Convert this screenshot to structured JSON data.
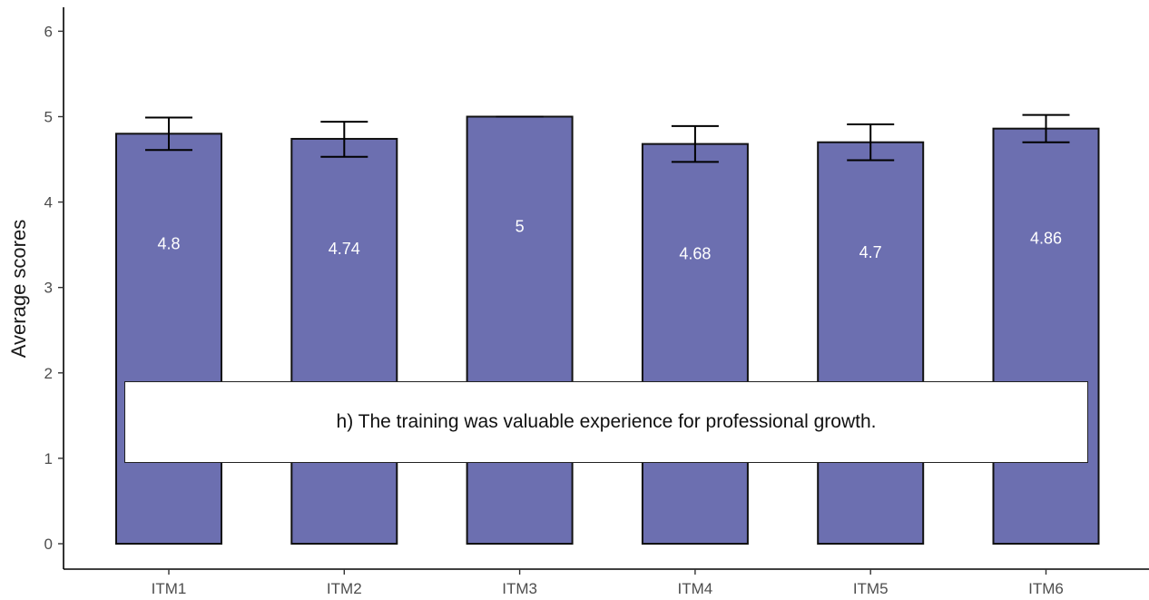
{
  "chart_data": {
    "type": "bar",
    "categories": [
      "ITM1",
      "ITM2",
      "ITM3",
      "ITM4",
      "ITM5",
      "ITM6"
    ],
    "values": [
      4.8,
      4.74,
      5,
      4.68,
      4.7,
      4.86
    ],
    "value_labels": [
      "4.8",
      "4.74",
      "5",
      "4.68",
      "4.7",
      "4.86"
    ],
    "error_low": [
      4.61,
      4.53,
      5.0,
      4.47,
      4.49,
      4.7
    ],
    "error_high": [
      4.99,
      4.94,
      5.0,
      4.89,
      4.91,
      5.02
    ],
    "ylabel": "Average scores",
    "xlabel": "",
    "ylim": [
      0,
      6
    ],
    "yticks": [
      "0",
      "1",
      "2",
      "3",
      "4",
      "5",
      "6"
    ],
    "bar_color": "#6c6fb0",
    "grid": false
  },
  "caption": {
    "text": "h) The training was valuable experience for professional growth."
  }
}
